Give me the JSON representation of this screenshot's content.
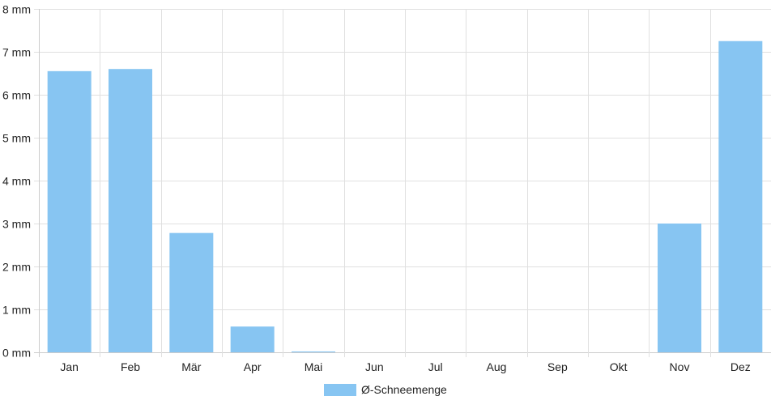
{
  "chart_data": {
    "type": "bar",
    "categories": [
      "Jan",
      "Feb",
      "Mär",
      "Apr",
      "Mai",
      "Jun",
      "Jul",
      "Aug",
      "Sep",
      "Okt",
      "Nov",
      "Dez"
    ],
    "series": [
      {
        "name": "Ø-Schneemenge",
        "values": [
          6.55,
          6.6,
          2.78,
          0.6,
          0.02,
          0,
          0,
          0,
          0,
          0,
          3.0,
          7.25
        ],
        "color": "#87c5f2"
      }
    ],
    "y_ticks": [
      "0 mm",
      "1 mm",
      "2 mm",
      "3 mm",
      "4 mm",
      "5 mm",
      "6 mm",
      "7 mm",
      "8 mm"
    ],
    "ylim": [
      0,
      8
    ],
    "grid": true,
    "legend_position": "bottom-center",
    "colors": {
      "grid": "#e0e0e0",
      "axis": "#cccccc",
      "text": "#222222"
    }
  }
}
